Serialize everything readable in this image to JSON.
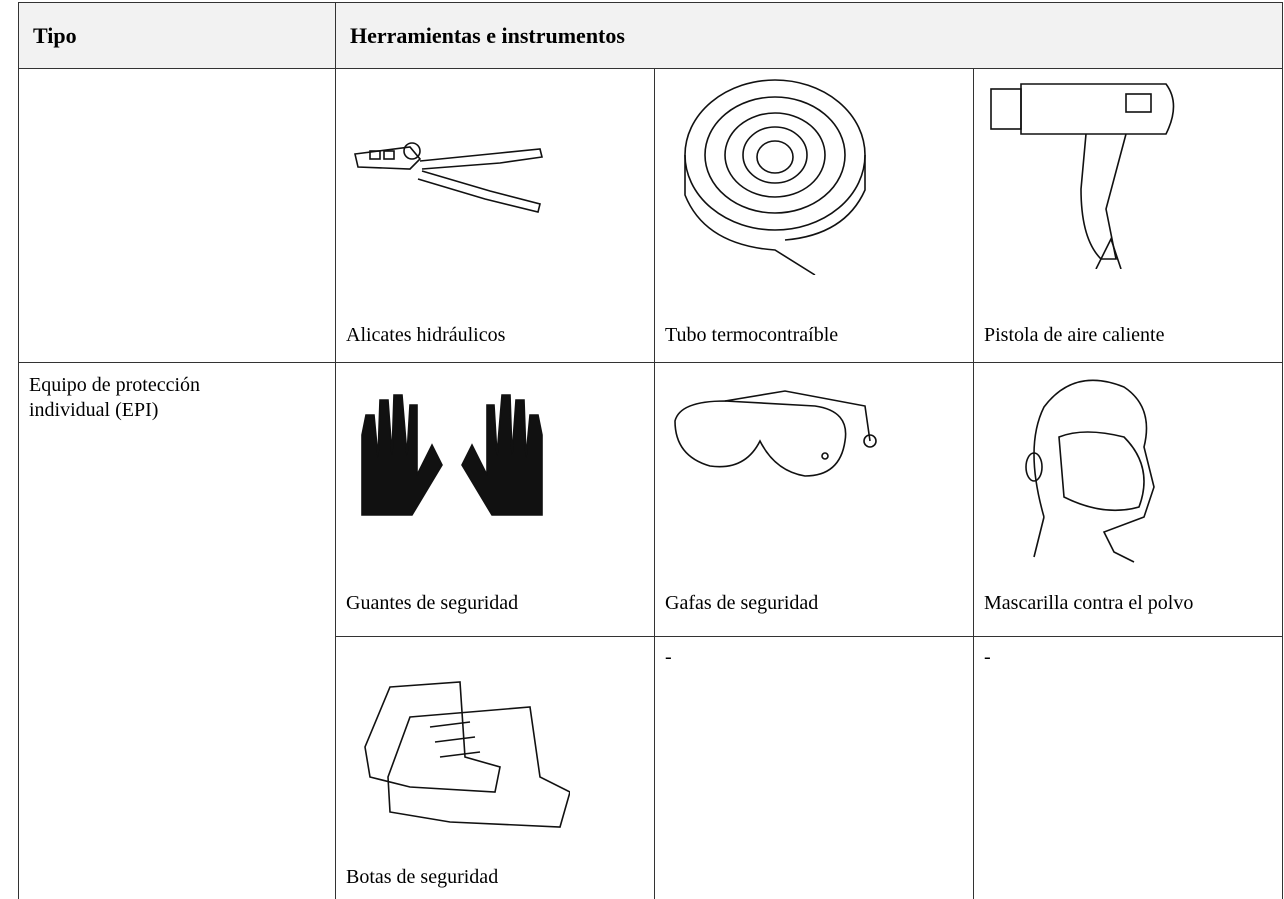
{
  "table": {
    "header": [
      "Tipo",
      "Herramientas e instrumentos"
    ],
    "rows": [
      {
        "items": [
          "Alicates hidráulicos",
          "Tubo termocontraíble",
          "Pistola de aire caliente"
        ]
      },
      {
        "type": "Equipo de protección individual (EPI)",
        "items": [
          "Guantes de seguridad",
          "Gafas de seguridad",
          "Mascarilla contra el polvo"
        ]
      },
      {
        "items": [
          "Botas de seguridad",
          "-",
          "-"
        ]
      }
    ]
  }
}
